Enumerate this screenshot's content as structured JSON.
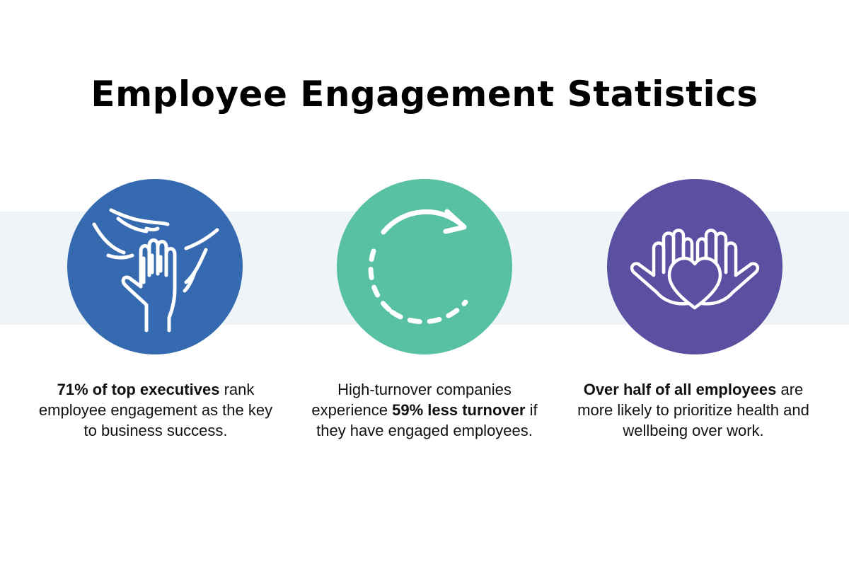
{
  "title": "Employee Engagement Statistics",
  "colors": {
    "band": "#eff4f8",
    "blue": "#3569b0",
    "green": "#58c1a3",
    "purple": "#5b4fa1",
    "icon_stroke": "#ffffff"
  },
  "stats": [
    {
      "icon": "stacked-hands-icon",
      "bold": "71% of top executives",
      "rest": " rank employee engagement as the key to business success."
    },
    {
      "icon": "circular-arrow-icon",
      "before": "High-turnover companies experience ",
      "bold": "59% less turnover",
      "after": " if they have engaged employees."
    },
    {
      "icon": "hands-holding-heart-icon",
      "bold": "Over half of all employees",
      "rest": " are more likely to prioritize health and wellbeing over work."
    }
  ]
}
